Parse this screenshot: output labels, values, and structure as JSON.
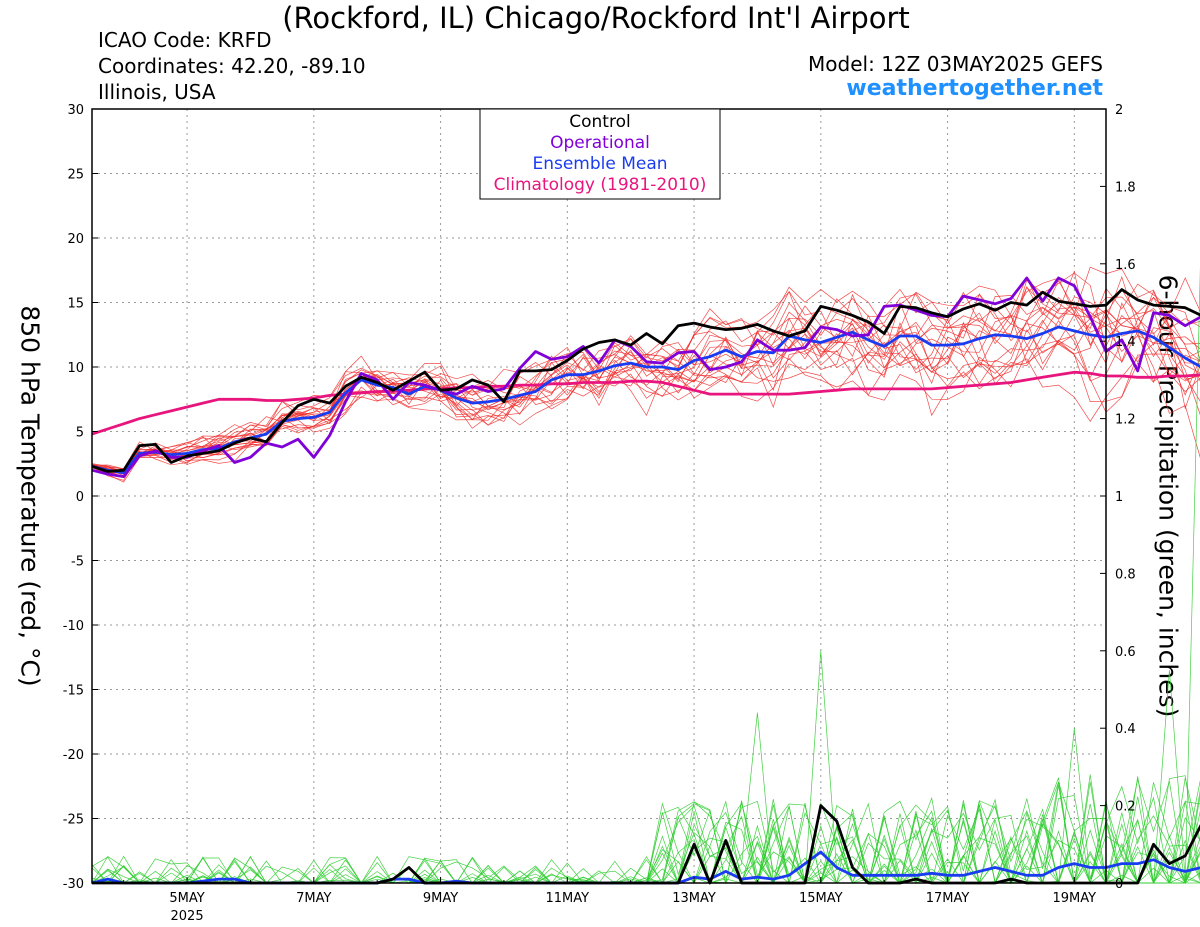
{
  "header": {
    "title": "(Rockford, IL) Chicago/Rockford Int'l Airport",
    "icao": "ICAO Code: KRFD",
    "coordinates": "Coordinates: 42.20, -89.10",
    "region": "Illinois, USA",
    "model": "Model: 12Z 03MAY2025 GEFS",
    "site": "weathertogether.net"
  },
  "colors": {
    "control": "#000000",
    "operational": "#8000d8",
    "ensemble_mean": "#1a3cf0",
    "climatology": "#e8157e",
    "members_temp": "#f02a2a",
    "members_precip": "#2ecc2e",
    "site": "#1e90ff"
  },
  "chart_data": {
    "type": "line",
    "ylabel": "850 hPa Temperature (red, °C)",
    "y2label": "6-hour Precipitation (green, inches)",
    "xlim": [
      3.5,
      19.5
    ],
    "ylim": [
      -30,
      30
    ],
    "y2lim": [
      0,
      2
    ],
    "yticks": [
      -30,
      -25,
      -20,
      -15,
      -10,
      -5,
      0,
      5,
      10,
      15,
      20,
      25,
      30
    ],
    "y2ticks": [
      0,
      0.2,
      0.4,
      0.6,
      0.8,
      1,
      1.2,
      1.4,
      1.6,
      1.8,
      2
    ],
    "xticks": [
      {
        "x": 5,
        "label": "5MAY",
        "sub": "2025"
      },
      {
        "x": 7,
        "label": "7MAY",
        "sub": ""
      },
      {
        "x": 9,
        "label": "9MAY",
        "sub": ""
      },
      {
        "x": 11,
        "label": "11MAY",
        "sub": ""
      },
      {
        "x": 13,
        "label": "13MAY",
        "sub": ""
      },
      {
        "x": 15,
        "label": "15MAY",
        "sub": ""
      },
      {
        "x": 17,
        "label": "17MAY",
        "sub": ""
      },
      {
        "x": 19,
        "label": "19MAY",
        "sub": ""
      }
    ],
    "legend": [
      "Control",
      "Operational",
      "Ensemble Mean",
      "Climatology (1981-2010)"
    ],
    "grid": true,
    "x_start": 3.5,
    "x_step": 0.25,
    "series": [
      {
        "name": "Control",
        "axis": "temp",
        "color": "#000000",
        "width": 2.8,
        "values": [
          2.3,
          1.9,
          2.0,
          3.9,
          4.0,
          2.6,
          3.1,
          3.3,
          3.5,
          4.1,
          4.5,
          4.2,
          5.7,
          7.0,
          7.5,
          7.2,
          8.5,
          9.2,
          8.8,
          8.2,
          8.9,
          9.6,
          8.2,
          8.3,
          9.0,
          8.6,
          7.3,
          9.7,
          9.7,
          9.8,
          10.5,
          11.4,
          11.9,
          12.1,
          11.7,
          12.6,
          11.8,
          13.2,
          13.4,
          13.1,
          12.9,
          13.0,
          13.3,
          12.8,
          12.4,
          12.8,
          14.7,
          14.4,
          14.0,
          13.5,
          12.6,
          14.7,
          14.6,
          14.2,
          13.9,
          14.5,
          14.9,
          14.4,
          15.0,
          14.8,
          15.8,
          15.1,
          14.9,
          14.7,
          14.8,
          16.0,
          15.2,
          14.8,
          14.7,
          14.6,
          14.0,
          14.8,
          14.4
        ]
      },
      {
        "name": "Operational",
        "axis": "temp",
        "color": "#8000d8",
        "width": 2.8,
        "values": [
          2.0,
          1.7,
          1.5,
          3.1,
          3.5,
          3.0,
          3.0,
          3.5,
          3.9,
          2.6,
          3.0,
          4.1,
          3.8,
          4.4,
          3.0,
          4.7,
          7.3,
          9.5,
          9.0,
          7.5,
          8.8,
          8.6,
          8.2,
          7.9,
          8.5,
          8.1,
          8.3,
          9.9,
          11.2,
          10.6,
          10.8,
          11.6,
          10.3,
          12.1,
          11.6,
          10.4,
          10.3,
          11.1,
          11.2,
          9.8,
          10.0,
          10.4,
          12.1,
          11.3,
          11.3,
          11.5,
          13.1,
          12.9,
          12.4,
          12.5,
          14.7,
          14.8,
          14.4,
          14.0,
          13.9,
          15.5,
          15.2,
          14.9,
          15.3,
          16.9,
          15.1,
          16.9,
          16.3,
          13.9,
          11.2,
          12.1,
          9.7,
          14.2,
          14.0,
          13.2,
          13.9,
          13.6,
          14.7,
          15.2,
          17.3,
          18.6,
          18.4
        ]
      },
      {
        "name": "Ensemble Mean",
        "axis": "temp",
        "color": "#1a3cf0",
        "width": 2.8,
        "values": [
          2.3,
          2.0,
          1.8,
          3.3,
          3.4,
          3.2,
          3.3,
          3.6,
          3.7,
          4.2,
          4.5,
          4.8,
          5.8,
          6.0,
          6.1,
          6.5,
          8.0,
          9.0,
          8.6,
          8.4,
          7.9,
          8.5,
          8.2,
          7.6,
          7.2,
          7.3,
          7.5,
          7.8,
          8.1,
          9.0,
          9.4,
          9.4,
          9.7,
          10.1,
          10.3,
          10.0,
          10.0,
          9.8,
          10.5,
          10.8,
          11.3,
          10.8,
          11.2,
          11.1,
          12.4,
          12.1,
          11.9,
          12.3,
          12.7,
          12.1,
          11.6,
          12.4,
          12.4,
          11.7,
          11.7,
          11.8,
          12.2,
          12.5,
          12.4,
          12.2,
          12.6,
          13.1,
          12.8,
          12.5,
          12.3,
          12.6,
          12.8,
          12.3,
          11.5,
          10.7,
          10.0,
          9.9,
          9.3,
          8.8
        ]
      },
      {
        "name": "Climatology (1981-2010)",
        "axis": "temp",
        "color": "#e8157e",
        "width": 2.8,
        "values": [
          4.8,
          5.2,
          5.6,
          6.0,
          6.3,
          6.6,
          6.9,
          7.2,
          7.5,
          7.5,
          7.5,
          7.4,
          7.4,
          7.5,
          7.6,
          7.8,
          7.9,
          8.0,
          8.1,
          8.1,
          8.2,
          8.3,
          8.3,
          8.4,
          8.4,
          8.5,
          8.5,
          8.6,
          8.6,
          8.7,
          8.7,
          8.8,
          8.8,
          8.8,
          8.9,
          8.9,
          8.8,
          8.5,
          8.2,
          7.9,
          7.9,
          7.9,
          7.9,
          7.9,
          7.9,
          8.0,
          8.1,
          8.2,
          8.3,
          8.3,
          8.3,
          8.3,
          8.3,
          8.3,
          8.4,
          8.5,
          8.6,
          8.7,
          8.8,
          9.0,
          9.2,
          9.4,
          9.6,
          9.5,
          9.3,
          9.3,
          9.2,
          9.2,
          9.3,
          9.3,
          9.4,
          9.5,
          9.5,
          9.6
        ]
      },
      {
        "name": "Control precip",
        "axis": "precip",
        "color": "#000000",
        "width": 2.8,
        "values": [
          0,
          0,
          0,
          0,
          0,
          0,
          0,
          0,
          0,
          0,
          0,
          0,
          0,
          0,
          0,
          0,
          0,
          0,
          0,
          0.01,
          0.04,
          0,
          0,
          0,
          0,
          0,
          0,
          0,
          0,
          0,
          0,
          0,
          0,
          0,
          0,
          0,
          0,
          0,
          0.1,
          0,
          0.11,
          0,
          0,
          0,
          0,
          0,
          0.2,
          0.16,
          0.04,
          0,
          0,
          0,
          0.01,
          0,
          0,
          0,
          0,
          0,
          0.01,
          0,
          0,
          0,
          0,
          0,
          0,
          0,
          0,
          0.1,
          0.05,
          0.07,
          0.15,
          0.07,
          0.14,
          0.13,
          0
        ]
      },
      {
        "name": "Mean precip",
        "axis": "precip",
        "color": "#1a3cf0",
        "width": 2.8,
        "values": [
          0,
          0.01,
          0,
          0,
          0,
          0,
          0,
          0.005,
          0.01,
          0.01,
          0,
          0,
          0,
          0,
          0,
          0,
          0,
          0,
          0,
          0.01,
          0.01,
          0,
          0,
          0.005,
          0,
          0,
          0,
          0,
          0,
          0,
          0,
          0,
          0,
          0,
          0,
          0,
          0,
          0,
          0.015,
          0.01,
          0.03,
          0.01,
          0.015,
          0.01,
          0.02,
          0.05,
          0.08,
          0.04,
          0.02,
          0.02,
          0.02,
          0.02,
          0.02,
          0.025,
          0.02,
          0.02,
          0.03,
          0.04,
          0.03,
          0.02,
          0.02,
          0.04,
          0.05,
          0.04,
          0.04,
          0.05,
          0.05,
          0.06,
          0.04,
          0.03,
          0.04,
          0.09,
          0.01,
          0
        ]
      }
    ]
  }
}
